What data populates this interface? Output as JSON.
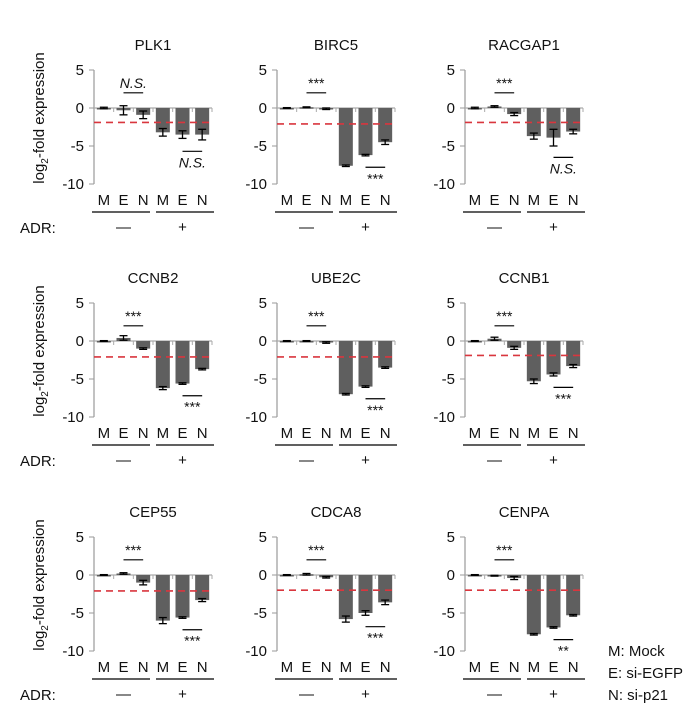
{
  "chart_data": {
    "type": "bar",
    "ylabel": "log2-fold expression",
    "ylim": [
      -10,
      5
    ],
    "yticks": [
      5,
      0,
      -5,
      -10
    ],
    "categories": [
      "M",
      "E",
      "N",
      "M",
      "E",
      "N"
    ],
    "treatment_label": "ADR:",
    "treatment_groups": [
      "—",
      "+"
    ],
    "legend": [
      "M: Mock",
      "E: si-EGFP",
      "N: si-p21"
    ],
    "bar_color": "#5f5f5f",
    "threshold_color": "#d9363e",
    "panels": [
      {
        "title": "PLK1",
        "values": [
          0,
          -0.3,
          -0.9,
          -3.2,
          -3.5,
          -3.5
        ],
        "errors": [
          0.1,
          0.6,
          0.5,
          0.5,
          0.5,
          0.7
        ],
        "threshold": -1.9,
        "sig_top": "N.S.",
        "sig_bottom": "N.S."
      },
      {
        "title": "BIRC5",
        "values": [
          0,
          0.1,
          -0.1,
          -7.6,
          -6.2,
          -4.5
        ],
        "errors": [
          0.05,
          0.05,
          0.1,
          0.1,
          0.1,
          0.3
        ],
        "threshold": -2.1,
        "sig_top": "***",
        "sig_bottom": "***"
      },
      {
        "title": "RACGAP1",
        "values": [
          0,
          0.2,
          -0.8,
          -3.7,
          -3.9,
          -3.1
        ],
        "errors": [
          0.1,
          0.1,
          0.2,
          0.4,
          1.1,
          0.3
        ],
        "threshold": -1.9,
        "sig_top": "***",
        "sig_bottom": "N.S."
      },
      {
        "title": "CCNB2",
        "values": [
          0,
          0.4,
          -1.0,
          -6.2,
          -5.6,
          -3.7
        ],
        "errors": [
          0.05,
          0.3,
          0.1,
          0.2,
          0.1,
          0.1
        ],
        "threshold": -2.1,
        "sig_top": "***",
        "sig_bottom": "***"
      },
      {
        "title": "UBE2C",
        "values": [
          0,
          0.0,
          -0.2,
          -7.0,
          -6.0,
          -3.5
        ],
        "errors": [
          0.05,
          0.05,
          0.1,
          0.1,
          0.1,
          0.1
        ],
        "threshold": -2.1,
        "sig_top": "***",
        "sig_bottom": "***"
      },
      {
        "title": "CCNB1",
        "values": [
          0,
          0.3,
          -0.9,
          -5.3,
          -4.4,
          -3.3
        ],
        "errors": [
          0.05,
          0.2,
          0.2,
          0.3,
          0.2,
          0.2
        ],
        "threshold": -1.9,
        "sig_top": "***",
        "sig_bottom": "***"
      },
      {
        "title": "CEP55",
        "values": [
          0,
          0.2,
          -1.0,
          -6.0,
          -5.6,
          -3.3
        ],
        "errors": [
          0.05,
          0.1,
          0.3,
          0.4,
          0.1,
          0.2
        ],
        "threshold": -2.1,
        "sig_top": "***",
        "sig_bottom": "***"
      },
      {
        "title": "CDCA8",
        "values": [
          0,
          0.1,
          -0.3,
          -5.8,
          -5.0,
          -3.6
        ],
        "errors": [
          0.05,
          0.1,
          0.1,
          0.4,
          0.3,
          0.3
        ],
        "threshold": -2.0,
        "sig_top": "***",
        "sig_bottom": "***"
      },
      {
        "title": "CENPA",
        "values": [
          0,
          -0.1,
          -0.4,
          -7.8,
          -6.9,
          -5.3
        ],
        "errors": [
          0.05,
          0.05,
          0.2,
          0.1,
          0.1,
          0.1
        ],
        "threshold": -2.0,
        "sig_top": "***",
        "sig_bottom": "**"
      }
    ]
  }
}
